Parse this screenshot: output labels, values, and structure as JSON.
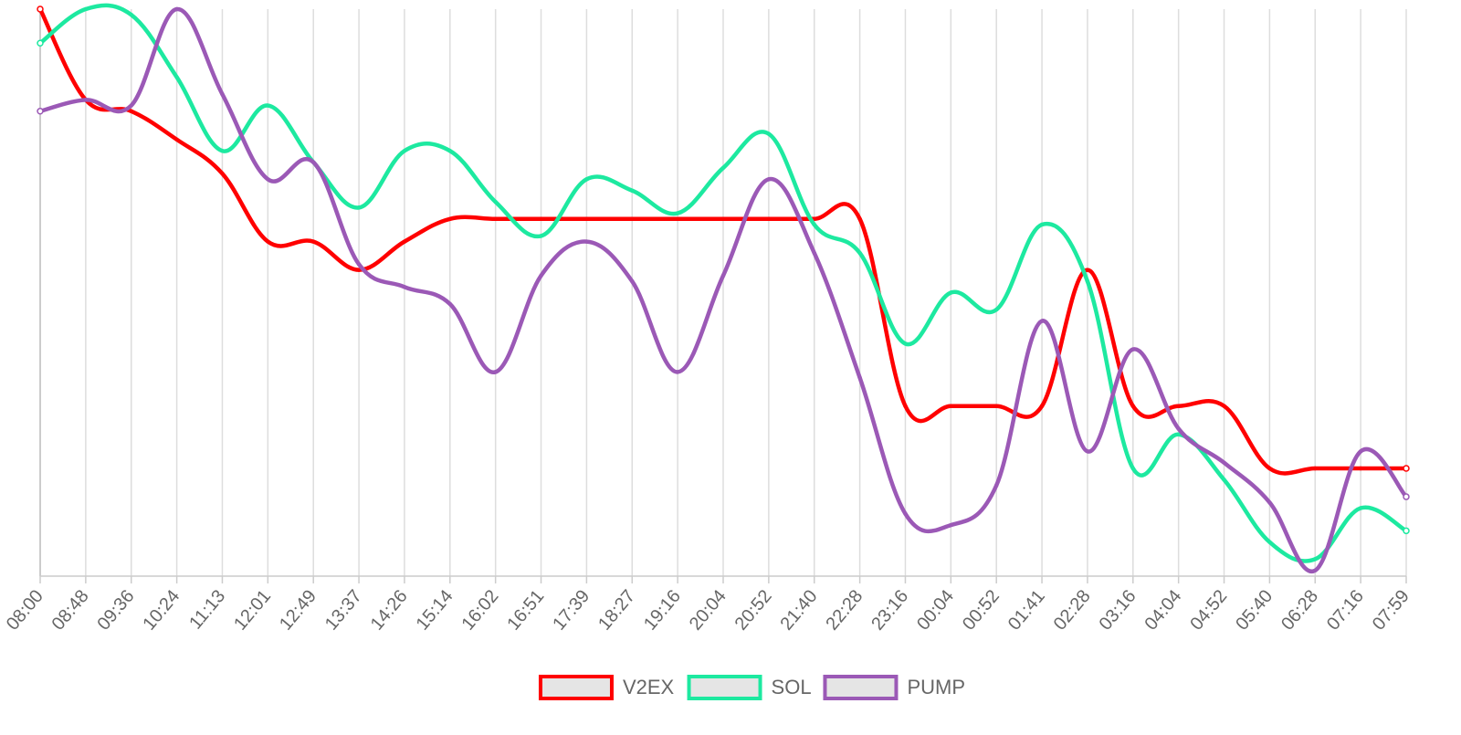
{
  "chart_data": {
    "type": "line",
    "x": [
      "08:00",
      "08:48",
      "09:36",
      "10:24",
      "11:13",
      "12:01",
      "12:49",
      "13:37",
      "14:26",
      "15:14",
      "16:02",
      "16:51",
      "17:39",
      "18:27",
      "19:16",
      "20:04",
      "20:52",
      "21:40",
      "22:28",
      "23:16",
      "00:04",
      "00:52",
      "01:41",
      "02:28",
      "03:16",
      "04:04",
      "04:52",
      "05:40",
      "06:28",
      "07:16",
      "07:59"
    ],
    "series": [
      {
        "name": "V2EX",
        "color": "#ff0000",
        "values": [
          100,
          84,
          82,
          77,
          71,
          59,
          59,
          54,
          59,
          63,
          63,
          63,
          63,
          63,
          63,
          63,
          63,
          63,
          63,
          30,
          30,
          30,
          30,
          54,
          30,
          30,
          30,
          19,
          19,
          19,
          19
        ]
      },
      {
        "name": "SOL",
        "color": "#1de9a0",
        "values": [
          94,
          100,
          99,
          88,
          75,
          83,
          73,
          65,
          75,
          75,
          66,
          60,
          70,
          68,
          64,
          72,
          78,
          62,
          57,
          41,
          50,
          47,
          62,
          52,
          19,
          25,
          17,
          6,
          3,
          12,
          8
        ]
      },
      {
        "name": "PUMP",
        "color": "#9b59b6",
        "values": [
          82,
          84,
          83,
          100,
          85,
          70,
          73,
          55,
          51,
          48,
          36,
          53,
          59,
          52,
          36,
          53,
          70,
          57,
          35,
          11,
          9,
          16,
          45,
          22,
          40,
          26,
          20,
          13,
          1,
          22,
          14
        ]
      }
    ],
    "grid": true,
    "legend": "bottom-center"
  }
}
